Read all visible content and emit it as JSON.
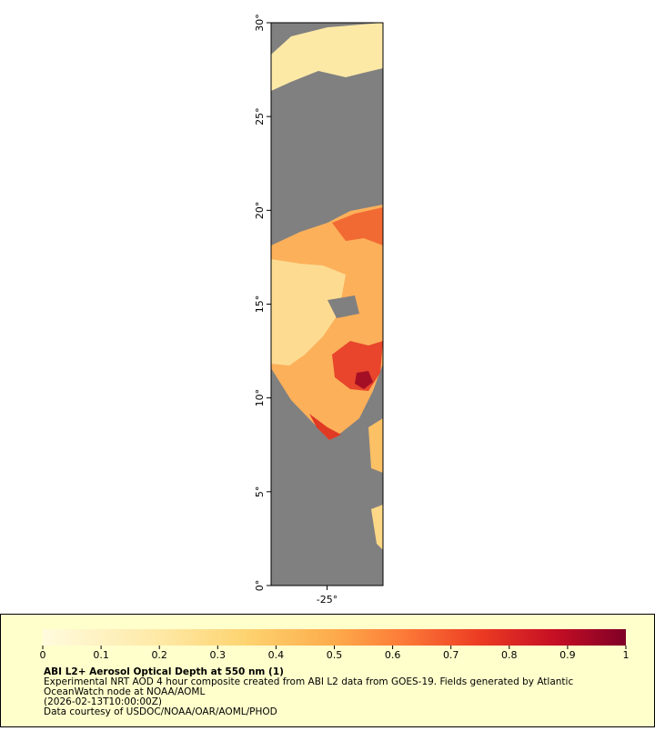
{
  "map": {
    "lat_range": [
      0,
      30
    ],
    "lon_range": [
      -28,
      -22
    ],
    "lat_ticks": [
      {
        "value": 0,
        "label": "0°"
      },
      {
        "value": 5,
        "label": "5°"
      },
      {
        "value": 10,
        "label": "10°"
      },
      {
        "value": 15,
        "label": "15°"
      },
      {
        "value": 20,
        "label": "20°"
      },
      {
        "value": 25,
        "label": "25°"
      },
      {
        "value": 30,
        "label": "30°"
      }
    ],
    "lon_ticks": [
      {
        "value": -25,
        "label": "-25°"
      }
    ]
  },
  "colorbar": {
    "range": [
      0,
      1
    ],
    "ticks": [
      0,
      0.1,
      0.2,
      0.3,
      0.4,
      0.5,
      0.6,
      0.7,
      0.8,
      0.9,
      1
    ]
  },
  "caption": {
    "title": "ABI L2+ Aerosol Optical Depth at 550 nm (1)",
    "lines": [
      "Experimental NRT AOD 4 hour composite created from ABI L2 data from GOES-19. Fields generated by Atlantic",
      "OceanWatch node at NOAA/AOML",
      "(2026-02-13T10:00:00Z)",
      "Data courtesy of USDOC/NOAA/OAR/AOML/PHOD"
    ]
  }
}
